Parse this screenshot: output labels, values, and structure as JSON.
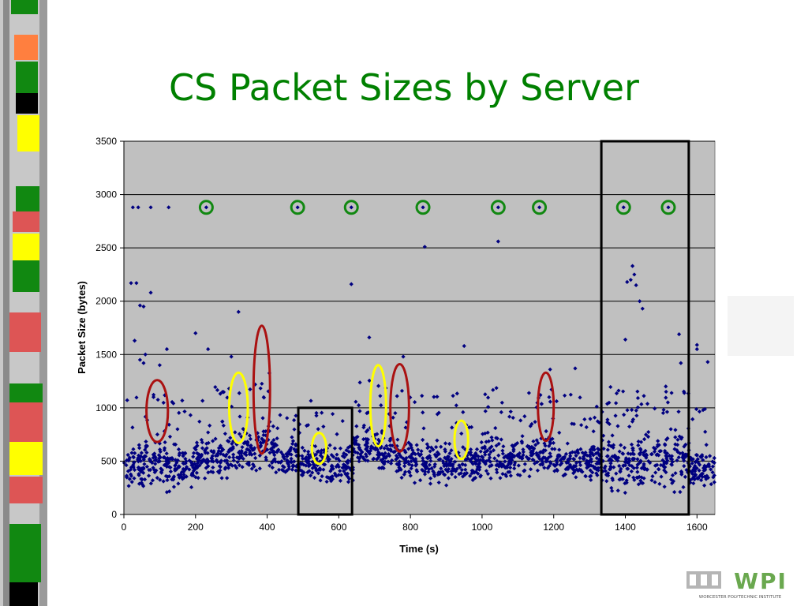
{
  "slide": {
    "title": "CS Packet Sizes by Server",
    "logo_text": "WPI",
    "logo_caption": "WORCESTER POLYTECHNIC INSTITUTE"
  },
  "chart_data": {
    "type": "scatter",
    "title": "",
    "xlabel": "Time (s)",
    "ylabel": "Packet Size (bytes)",
    "xlim": [
      0,
      1650
    ],
    "ylim": [
      0,
      3500
    ],
    "xticks": [
      0,
      200,
      400,
      600,
      800,
      1000,
      1200,
      1400,
      1600
    ],
    "yticks": [
      0,
      500,
      1000,
      1500,
      2000,
      2500,
      3000,
      3500
    ],
    "grid": "horizontal",
    "marker_color": "#000080",
    "plot_background": "#c0c0c0",
    "series": [
      {
        "points": [
          [
            25,
            2880
          ],
          [
            40,
            2880
          ],
          [
            75,
            2880
          ],
          [
            125,
            2880
          ],
          [
            230,
            2880
          ],
          [
            485,
            2880
          ],
          [
            635,
            2880
          ],
          [
            835,
            2880
          ],
          [
            1045,
            2880
          ],
          [
            1160,
            2880
          ],
          [
            1395,
            2880
          ],
          [
            1520,
            2880
          ],
          [
            20,
            2170
          ],
          [
            35,
            2170
          ],
          [
            75,
            2080
          ],
          [
            45,
            1960
          ],
          [
            55,
            1950
          ],
          [
            30,
            1630
          ],
          [
            45,
            1450
          ],
          [
            60,
            1500
          ],
          [
            55,
            1420
          ],
          [
            120,
            1550
          ],
          [
            100,
            1400
          ],
          [
            200,
            1700
          ],
          [
            235,
            1550
          ],
          [
            320,
            1900
          ],
          [
            635,
            2160
          ],
          [
            685,
            1660
          ],
          [
            840,
            2510
          ],
          [
            1045,
            2560
          ],
          [
            950,
            1580
          ],
          [
            1420,
            2330
          ],
          [
            1425,
            2250
          ],
          [
            1415,
            2200
          ],
          [
            1405,
            2180
          ],
          [
            1430,
            2150
          ],
          [
            1440,
            2000
          ],
          [
            1448,
            1930
          ],
          [
            1400,
            1640
          ],
          [
            1550,
            1690
          ],
          [
            1600,
            1590
          ],
          [
            1190,
            1360
          ],
          [
            1260,
            1370
          ],
          [
            1555,
            1420
          ],
          [
            1600,
            1550
          ],
          [
            300,
            1480
          ],
          [
            780,
            1480
          ],
          [
            1630,
            1430
          ]
        ],
        "dense_bands": [
          [
            0,
            60,
            180,
            720
          ],
          [
            60,
            120,
            220,
            780
          ],
          [
            120,
            200,
            180,
            720
          ],
          [
            200,
            300,
            260,
            820
          ],
          [
            300,
            360,
            320,
            900
          ],
          [
            360,
            420,
            280,
            950
          ],
          [
            420,
            490,
            280,
            760
          ],
          [
            490,
            640,
            220,
            720
          ],
          [
            640,
            700,
            400,
            900
          ],
          [
            700,
            760,
            350,
            860
          ],
          [
            760,
            840,
            230,
            780
          ],
          [
            840,
            940,
            220,
            760
          ],
          [
            940,
            1000,
            260,
            720
          ],
          [
            1000,
            1060,
            210,
            880
          ],
          [
            1060,
            1140,
            260,
            800
          ],
          [
            1140,
            1200,
            300,
            860
          ],
          [
            1200,
            1330,
            220,
            760
          ],
          [
            1330,
            1420,
            130,
            820
          ],
          [
            1420,
            1500,
            130,
            880
          ],
          [
            1500,
            1580,
            160,
            880
          ],
          [
            1580,
            1650,
            200,
            640
          ]
        ],
        "dense_count": 1900
      }
    ],
    "annotations": {
      "green_circles": [
        [
          230,
          2880
        ],
        [
          485,
          2880
        ],
        [
          635,
          2880
        ],
        [
          835,
          2880
        ],
        [
          1045,
          2880
        ],
        [
          1160,
          2880
        ],
        [
          1395,
          2880
        ],
        [
          1520,
          2880
        ]
      ],
      "red_ellipses": [
        [
          93,
          970,
          30,
          290
        ],
        [
          385,
          1170,
          23,
          600
        ],
        [
          770,
          1000,
          26,
          410
        ],
        [
          1178,
          1010,
          22,
          320
        ]
      ],
      "yellow_ellipses": [
        [
          320,
          1000,
          26,
          330
        ],
        [
          545,
          620,
          20,
          145
        ],
        [
          710,
          1020,
          22,
          380
        ],
        [
          942,
          700,
          19,
          180
        ]
      ],
      "black_boxes": [
        [
          487,
          637,
          0,
          1000
        ],
        [
          1333,
          1577,
          0,
          3500
        ]
      ]
    }
  }
}
